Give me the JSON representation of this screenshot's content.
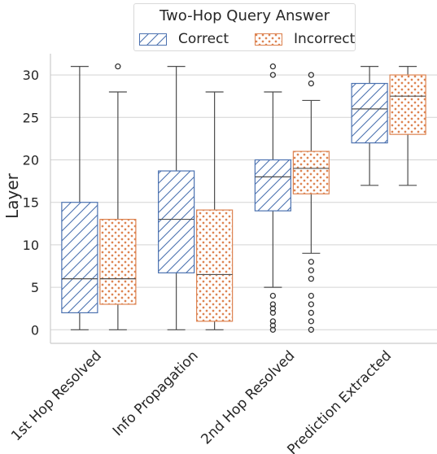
{
  "chart_data": {
    "type": "box",
    "ylabel": "Layer",
    "yticks": [
      0,
      5,
      10,
      15,
      20,
      25,
      30
    ],
    "ylim": [
      -1.6,
      32.5
    ],
    "grid": "horizontal",
    "legend": {
      "title": "Two-Hop Query Answer",
      "placement": "top-center",
      "entries": [
        "Correct",
        "Incorrect"
      ]
    },
    "categories": [
      "1st Hop Resolved",
      "Info Propagation",
      "2nd Hop Resolved",
      "Prediction Extracted"
    ],
    "series": [
      {
        "name": "Correct",
        "color": "#4c72b0",
        "hatch": "diagonal",
        "boxes": [
          {
            "whislo": 0,
            "q1": 2,
            "med": 6,
            "q3": 15,
            "whishi": 31,
            "fliers": []
          },
          {
            "whislo": 0,
            "q1": 6.7,
            "med": 13,
            "q3": 18.7,
            "whishi": 31,
            "fliers": []
          },
          {
            "whislo": 5,
            "q1": 14,
            "med": 18,
            "q3": 20,
            "whishi": 28,
            "fliers": [
              0,
              0.5,
              1,
              2,
              2.5,
              3,
              4,
              30,
              31
            ]
          },
          {
            "whislo": 17,
            "q1": 22,
            "med": 26,
            "q3": 29,
            "whishi": 31,
            "fliers": []
          }
        ]
      },
      {
        "name": "Incorrect",
        "color": "#dd8452",
        "hatch": "dots",
        "boxes": [
          {
            "whislo": 0,
            "q1": 3,
            "med": 6,
            "q3": 13,
            "whishi": 28,
            "fliers": [
              31
            ]
          },
          {
            "whislo": 0,
            "q1": 1,
            "med": 6.5,
            "q3": 14.1,
            "whishi": 28,
            "fliers": []
          },
          {
            "whislo": 9,
            "q1": 16,
            "med": 19,
            "q3": 21,
            "whishi": 27,
            "fliers": [
              0,
              1,
              2,
              3,
              4,
              6,
              7,
              8,
              29,
              30
            ]
          },
          {
            "whislo": 17,
            "q1": 23,
            "med": 27.5,
            "q3": 30,
            "whishi": 31,
            "fliers": []
          }
        ]
      }
    ]
  }
}
